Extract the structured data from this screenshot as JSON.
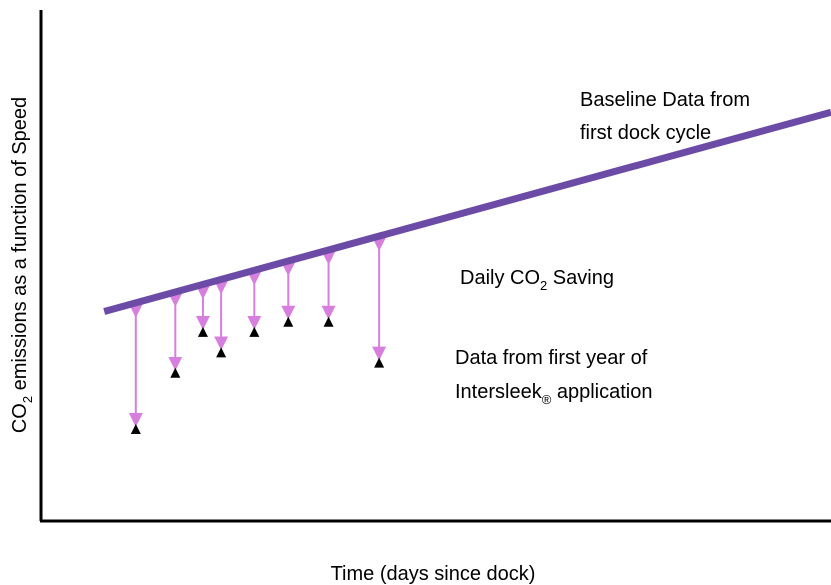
{
  "chart_data": {
    "type": "line",
    "title": "",
    "xlabel": "Time (days since dock)",
    "ylabel": {
      "prefix": "CO",
      "sub": "2",
      "rest": " emissions as a function of Speed"
    },
    "axes": {
      "ticks": false,
      "grid": false
    },
    "baseline": {
      "name_line1": "Baseline Data from",
      "name_line2": "first dock cycle",
      "color": "#6b4ba6",
      "start": [
        0.08,
        0.41
      ],
      "end": [
        1.0,
        0.8
      ]
    },
    "saving_label": {
      "prefix": "Daily CO",
      "sub": "2",
      "rest": " Saving"
    },
    "data_label": {
      "line1": "Data from first year of",
      "line2_prefix": "Intersleek",
      "line2_sub": "®",
      "line2_rest": " application"
    },
    "arrow_color": "#d77fde",
    "point_color": "#000000",
    "points": [
      {
        "x": 0.12,
        "y": 0.18
      },
      {
        "x": 0.17,
        "y": 0.29
      },
      {
        "x": 0.205,
        "y": 0.37
      },
      {
        "x": 0.228,
        "y": 0.33
      },
      {
        "x": 0.27,
        "y": 0.37
      },
      {
        "x": 0.313,
        "y": 0.39
      },
      {
        "x": 0.364,
        "y": 0.39
      },
      {
        "x": 0.428,
        "y": 0.31
      }
    ]
  }
}
